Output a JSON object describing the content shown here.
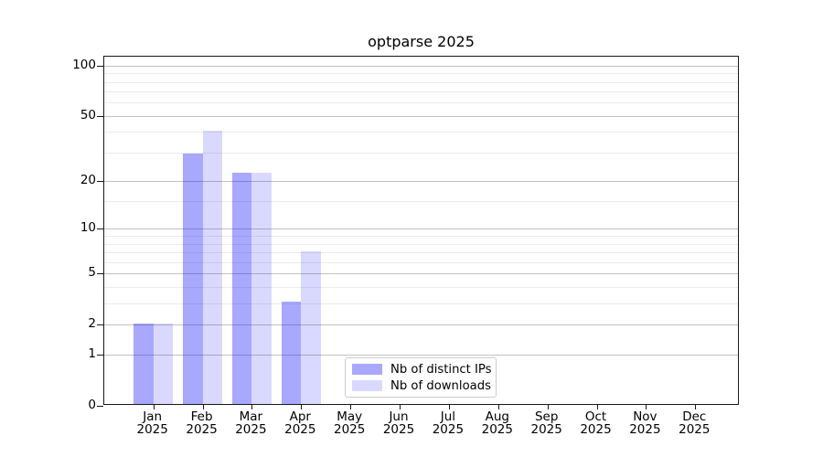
{
  "chart_data": {
    "type": "bar",
    "title": "optparse 2025",
    "categories": [
      "Jan 2025",
      "Feb 2025",
      "Mar 2025",
      "Apr 2025",
      "May 2025",
      "Jun 2025",
      "Jul 2025",
      "Aug 2025",
      "Sep 2025",
      "Oct 2025",
      "Nov 2025",
      "Dec 2025"
    ],
    "series": [
      {
        "name": "Nb of distinct IPs",
        "color": "#0000ff57",
        "values": [
          2,
          29,
          22,
          3,
          0,
          0,
          0,
          0,
          0,
          0,
          0,
          0
        ]
      },
      {
        "name": "Nb of downloads",
        "color": "#0000ff26",
        "values": [
          2,
          40,
          22,
          7,
          0,
          0,
          0,
          0,
          0,
          0,
          0,
          0
        ]
      }
    ],
    "xlabel": "",
    "ylabel": "",
    "yscale": "log1p",
    "ylim": [
      0,
      113
    ],
    "y_major_ticks": [
      0,
      1,
      2,
      5,
      10,
      20,
      50,
      100
    ],
    "y_minor_gridlines": [
      3,
      4,
      6,
      7,
      8,
      9,
      15,
      30,
      40,
      60,
      70,
      80,
      90
    ],
    "grid": "horizontal",
    "legend_position": "inside-bottom-center"
  },
  "colors": {
    "bar_distinct_ips": "#0000ff57",
    "bar_downloads": "#0000ff26",
    "major_grid": "#c2c2c2",
    "minor_grid": "#ebebeb",
    "axis": "#1a1a1a",
    "legend_border": "#cccccc",
    "background": "#ffffff"
  }
}
